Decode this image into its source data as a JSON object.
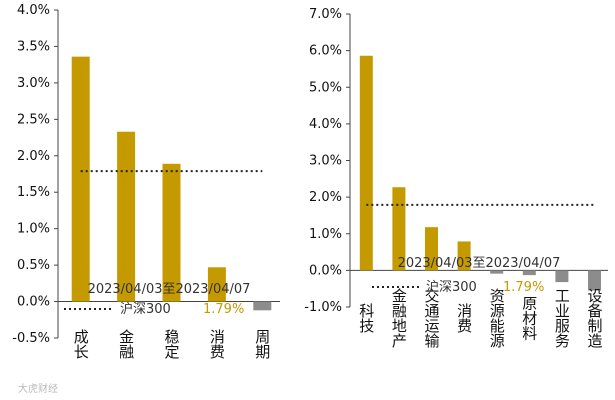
{
  "chart_data": [
    {
      "type": "bar",
      "categories": [
        "成长",
        "金融",
        "稳定",
        "消费",
        "周期"
      ],
      "values": [
        3.36,
        2.33,
        1.89,
        0.47,
        -0.12
      ],
      "reference_line": {
        "name": "沪深300",
        "value": 1.79,
        "label": "1.79%"
      },
      "date_range": "2023/04/03至2023/04/07",
      "ylim": [
        -0.5,
        4.0
      ],
      "yticks": [
        "-0.5%",
        "0.0%",
        "0.5%",
        "1.0%",
        "1.5%",
        "2.0%",
        "2.5%",
        "3.0%",
        "3.5%",
        "4.0%"
      ],
      "colors": {
        "positive": "#c49a00",
        "negative": "#8c8c8c",
        "reference": "#222222"
      }
    },
    {
      "type": "bar",
      "categories": [
        "科技",
        "金融地产",
        "交通运输",
        "消费",
        "资源能源",
        "原材料",
        "工业服务",
        "设备制造"
      ],
      "values": [
        5.86,
        2.27,
        1.18,
        0.79,
        -0.09,
        -0.13,
        -0.32,
        -0.55
      ],
      "reference_line": {
        "name": "沪深300",
        "value": 1.79,
        "label": "1.79%"
      },
      "date_range": "2023/04/03至2023/04/07",
      "ylim": [
        -1.0,
        7.0
      ],
      "yticks": [
        "-1.0%",
        "0.0%",
        "1.0%",
        "2.0%",
        "3.0%",
        "4.0%",
        "5.0%",
        "6.0%",
        "7.0%"
      ],
      "colors": {
        "positive": "#c49a00",
        "negative": "#8c8c8c",
        "reference": "#222222"
      }
    }
  ],
  "watermark": "大虎财经"
}
